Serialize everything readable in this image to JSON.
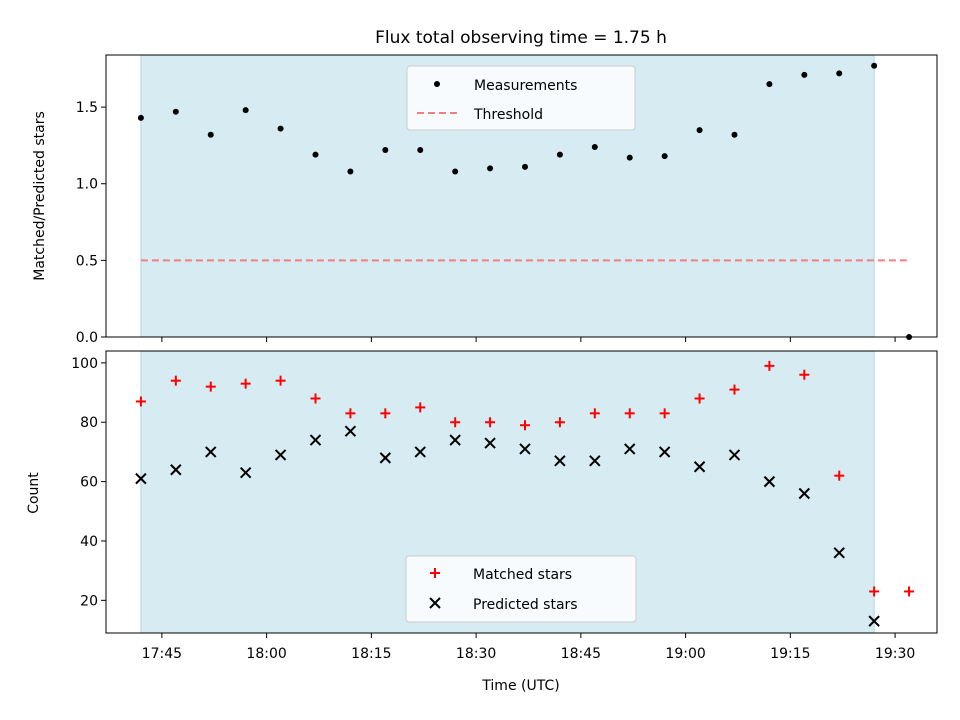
{
  "colors": {
    "shade": "#add8e6",
    "measurement": "#000000",
    "threshold": "#f08080",
    "matched": "#ff0000",
    "predicted": "#000000"
  },
  "chart_data": [
    {
      "type": "scatter",
      "title": "Flux total observing time = 1.75 h",
      "ylabel": "Matched/Predicted stars",
      "xlabel": "",
      "ylim": [
        0,
        1.84
      ],
      "yticks": [
        0.0,
        0.5,
        1.0,
        1.5
      ],
      "ytick_labels": [
        "0.0",
        "0.5",
        "1.0",
        "1.5"
      ],
      "shaded_span": [
        "17:42",
        "19:27"
      ],
      "legend": {
        "placement": "top-center",
        "entries": [
          "Measurements",
          "Threshold"
        ]
      },
      "series": [
        {
          "name": "Measurements",
          "marker": "dot",
          "x": [
            "17:42",
            "17:47",
            "17:52",
            "17:57",
            "18:02",
            "18:07",
            "18:12",
            "18:17",
            "18:22",
            "18:27",
            "18:32",
            "18:37",
            "18:42",
            "18:47",
            "18:52",
            "18:57",
            "19:02",
            "19:07",
            "19:12",
            "19:17",
            "19:22",
            "19:27",
            "19:32"
          ],
          "y": [
            1.43,
            1.47,
            1.32,
            1.48,
            1.36,
            1.19,
            1.08,
            1.22,
            1.22,
            1.08,
            1.1,
            1.11,
            1.19,
            1.24,
            1.17,
            1.18,
            1.35,
            1.32,
            1.65,
            1.71,
            1.72,
            1.77,
            0.0
          ]
        },
        {
          "name": "Threshold",
          "style": "dashed",
          "x": [
            "17:42",
            "19:32"
          ],
          "y": [
            0.5,
            0.5
          ]
        }
      ]
    },
    {
      "type": "scatter",
      "title": "",
      "ylabel": "Count",
      "xlabel": "Time (UTC)",
      "ylim": [
        9,
        104
      ],
      "yticks": [
        20,
        40,
        60,
        80,
        100
      ],
      "ytick_labels": [
        "20",
        "40",
        "60",
        "80",
        "100"
      ],
      "xlim": [
        "17:37",
        "19:36"
      ],
      "xticks": [
        "17:45",
        "18:00",
        "18:15",
        "18:30",
        "18:45",
        "19:00",
        "19:15",
        "19:30"
      ],
      "shaded_span": [
        "17:42",
        "19:27"
      ],
      "legend": {
        "placement": "bottom-center",
        "entries": [
          "Matched stars",
          "Predicted stars"
        ]
      },
      "series": [
        {
          "name": "Matched stars",
          "marker": "plus",
          "x": [
            "17:42",
            "17:47",
            "17:52",
            "17:57",
            "18:02",
            "18:07",
            "18:12",
            "18:17",
            "18:22",
            "18:27",
            "18:32",
            "18:37",
            "18:42",
            "18:47",
            "18:52",
            "18:57",
            "19:02",
            "19:07",
            "19:12",
            "19:17",
            "19:22",
            "19:27",
            "19:32"
          ],
          "y": [
            87,
            94,
            92,
            93,
            94,
            88,
            83,
            83,
            85,
            80,
            80,
            79,
            80,
            83,
            83,
            83,
            88,
            91,
            99,
            96,
            62,
            23,
            23
          ]
        },
        {
          "name": "Predicted stars",
          "marker": "x",
          "x": [
            "17:42",
            "17:47",
            "17:52",
            "17:57",
            "18:02",
            "18:07",
            "18:12",
            "18:17",
            "18:22",
            "18:27",
            "18:32",
            "18:37",
            "18:42",
            "18:47",
            "18:52",
            "18:57",
            "19:02",
            "19:07",
            "19:12",
            "19:17",
            "19:22",
            "19:27"
          ],
          "y": [
            61,
            64,
            70,
            63,
            69,
            74,
            77,
            68,
            70,
            74,
            73,
            71,
            67,
            67,
            71,
            70,
            65,
            69,
            60,
            56,
            36,
            13
          ]
        }
      ]
    }
  ]
}
